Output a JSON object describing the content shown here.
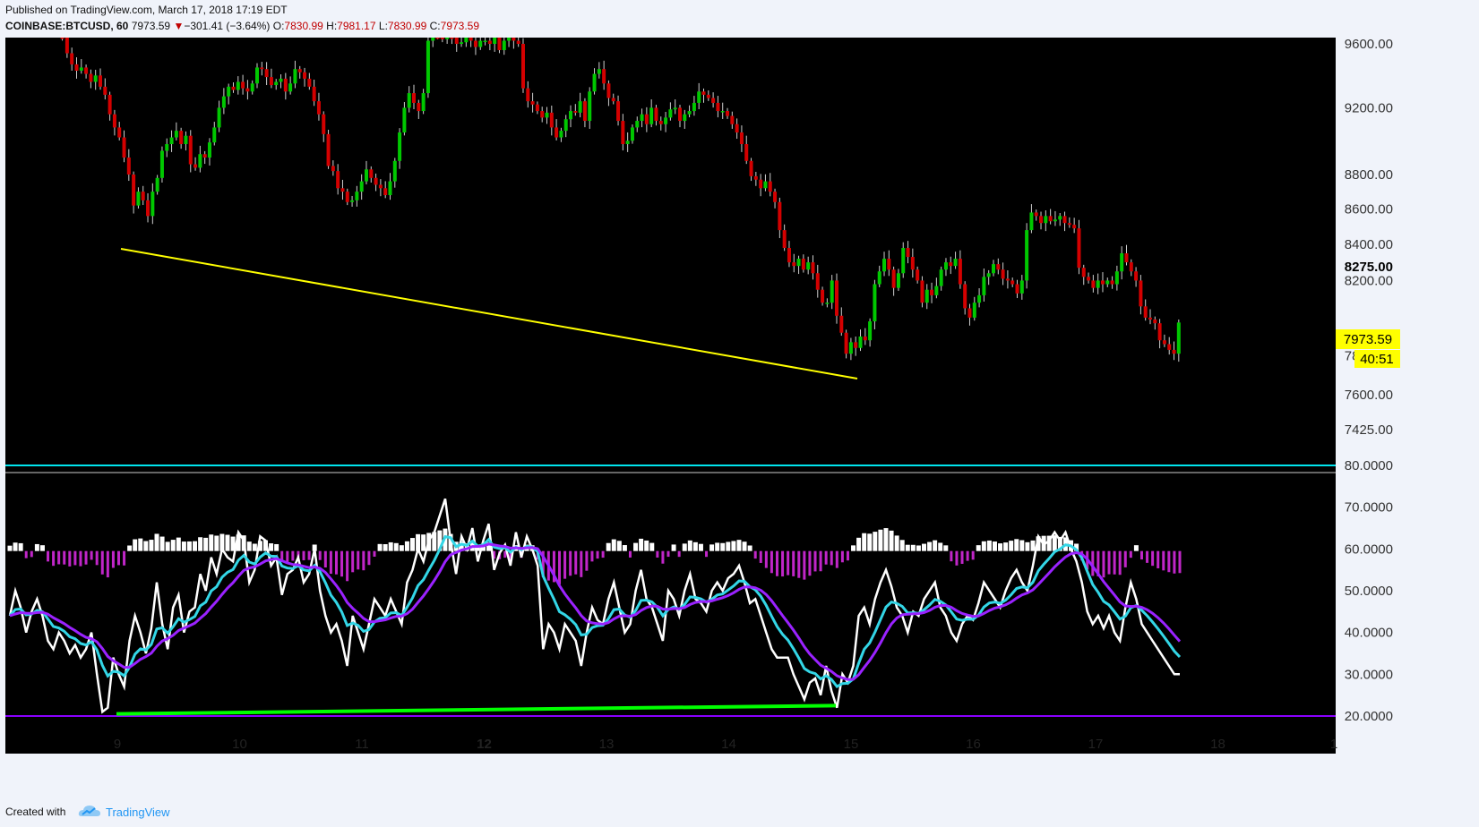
{
  "header": {
    "published": "Published on TradingView.com, March 17, 2018 17:19 EDT",
    "symbol": "COINBASE:BTCUSD, 60",
    "last": "7973.59",
    "change_arrow": "▼",
    "change": "−301.41 (−3.64%)",
    "o_label": "O:",
    "o_value": "7830.99",
    "h_label": "H:",
    "h_value": "7981.17",
    "l_label": "L:",
    "l_value": "7830.99",
    "c_label": "C:",
    "c_value": "7973.59"
  },
  "footer": {
    "created": "Created with",
    "brand": "TradingView",
    "logo_icon": "tradingview-cloud-icon"
  },
  "colors": {
    "background": "#000000",
    "up": "#00c800",
    "down": "#d40000",
    "trendline_price": "#ffff00",
    "trendline_osc": "#00ff00",
    "cyan": "#33d6e6",
    "purple": "#9a22ff",
    "white": "#ffffff",
    "hist_pos": "#ffffff",
    "hist_neg": "#c026c8",
    "band_upper": "#00e5ee",
    "band_lower": "#8a00ff"
  },
  "chart_data": [
    {
      "type": "candlestick",
      "title": "COINBASE:BTCUSD, 60",
      "x_ticks": [
        "9",
        "10",
        "11",
        "12",
        "13",
        "14",
        "15",
        "16",
        "17",
        "18",
        "1"
      ],
      "y_ticks": [
        "9600.00",
        "9200.00",
        "8800.00",
        "8600.00",
        "8400.00",
        "8275.00",
        "8200.00",
        "7800.00",
        "7600.00",
        "7425.00"
      ],
      "ylim": [
        7340,
        9650
      ],
      "scale": "log",
      "last_price_label": "7973.59",
      "countdown_label": "40:51",
      "close_series": [
        9640,
        9540,
        9470,
        9430,
        9450,
        9410,
        9360,
        9400,
        9330,
        9280,
        9160,
        9080,
        9020,
        8900,
        8800,
        8620,
        8700,
        8650,
        8560,
        8700,
        8780,
        8940,
        8980,
        9020,
        9060,
        8980,
        9030,
        8860,
        8840,
        8920,
        8900,
        8990,
        9080,
        9200,
        9270,
        9330,
        9310,
        9360,
        9320,
        9300,
        9350,
        9450,
        9440,
        9390,
        9340,
        9360,
        9380,
        9300,
        9350,
        9440,
        9420,
        9380,
        9330,
        9240,
        9160,
        9040,
        8850,
        8820,
        8720,
        8700,
        8640,
        8650,
        8700,
        8760,
        8830,
        8780,
        8740,
        8720,
        8680,
        8760,
        8880,
        9050,
        9200,
        9290,
        9230,
        9180,
        9290,
        9620,
        9700,
        9680,
        9630,
        9660,
        9640,
        9600,
        9610,
        9650,
        9620,
        9580,
        9620,
        9620,
        9600,
        9640,
        9560,
        9620,
        9680,
        9620,
        9600,
        9320,
        9240,
        9220,
        9180,
        9140,
        9170,
        9080,
        9020,
        9060,
        9130,
        9180,
        9170,
        9240,
        9120,
        9300,
        9410,
        9440,
        9350,
        9260,
        9240,
        9120,
        8980,
        9000,
        9080,
        9120,
        9160,
        9100,
        9200,
        9120,
        9100,
        9140,
        9190,
        9200,
        9120,
        9160,
        9180,
        9230,
        9300,
        9280,
        9260,
        9230,
        9180,
        9180,
        9150,
        9100,
        9050,
        8980,
        8880,
        8790,
        8770,
        8720,
        8760,
        8700,
        8640,
        8480,
        8380,
        8300,
        8280,
        8320,
        8260,
        8300,
        8240,
        8150,
        8080,
        8080,
        8200,
        8010,
        7920,
        7810,
        7870,
        7840,
        7900,
        7880,
        7980,
        8180,
        8250,
        8320,
        8260,
        8160,
        8240,
        8380,
        8330,
        8260,
        8200,
        8080,
        8150,
        8120,
        8170,
        8260,
        8300,
        8280,
        8320,
        8180,
        8050,
        8000,
        8080,
        8120,
        8220,
        8240,
        8290,
        8260,
        8210,
        8200,
        8180,
        8130,
        8200,
        8480,
        8580,
        8560,
        8520,
        8560,
        8530,
        8540,
        8560,
        8520,
        8510,
        8490,
        8270,
        8220,
        8200,
        8160,
        8200,
        8180,
        8200,
        8180,
        8250,
        8350,
        8300,
        8250,
        8200,
        8060,
        8000,
        7990,
        7970,
        7880,
        7860,
        7830,
        7810,
        7974
      ]
    },
    {
      "type": "line",
      "title": "",
      "ylim": [
        18,
        84
      ],
      "y_ticks": [
        "80.0000",
        "70.0000",
        "60.0000",
        "50.0000",
        "40.0000",
        "30.0000",
        "20.0000"
      ],
      "bands": [
        80,
        20
      ],
      "zero_line": 59.5,
      "series_white": [
        44,
        50,
        46,
        40,
        45,
        48,
        44,
        38,
        36,
        40,
        38,
        35,
        37,
        34,
        36,
        40,
        30,
        21,
        22,
        34,
        30,
        27,
        38,
        44,
        40,
        35,
        41,
        52,
        42,
        36,
        46,
        49,
        40,
        45,
        46,
        54,
        50,
        58,
        54,
        60,
        58,
        57,
        64,
        62,
        52,
        55,
        63,
        62,
        56,
        58,
        49,
        54,
        55,
        58,
        52,
        54,
        60,
        50,
        44,
        40,
        42,
        38,
        32,
        44,
        40,
        36,
        42,
        48,
        46,
        44,
        48,
        45,
        42,
        52,
        55,
        60,
        57,
        62,
        64,
        68,
        72,
        62,
        54,
        63,
        60,
        65,
        57,
        62,
        66,
        55,
        59,
        61,
        56,
        64,
        58,
        63,
        60,
        56,
        36,
        42,
        40,
        36,
        42,
        40,
        38,
        32,
        40,
        46,
        43,
        42,
        48,
        52,
        46,
        40,
        42,
        50,
        55,
        48,
        46,
        42,
        38,
        50,
        48,
        44,
        50,
        54,
        48,
        47,
        45,
        50,
        52,
        50,
        53,
        54,
        56,
        52,
        47,
        48,
        44,
        40,
        36,
        34,
        34,
        34,
        30,
        27,
        24,
        28,
        29,
        25,
        32,
        26,
        22,
        30,
        28,
        32,
        44,
        46,
        42,
        48,
        52,
        55,
        51,
        46,
        44,
        40,
        45,
        44,
        48,
        50,
        52,
        46,
        44,
        40,
        38,
        42,
        44,
        43,
        47,
        52,
        50,
        48,
        46,
        50,
        53,
        55,
        52,
        50,
        56,
        63,
        61,
        62,
        64,
        62,
        64,
        60,
        57,
        52,
        45,
        42,
        44,
        41,
        44,
        40,
        38,
        46,
        52,
        48,
        42,
        40,
        38,
        36,
        34,
        32,
        30,
        30
      ]
    }
  ]
}
